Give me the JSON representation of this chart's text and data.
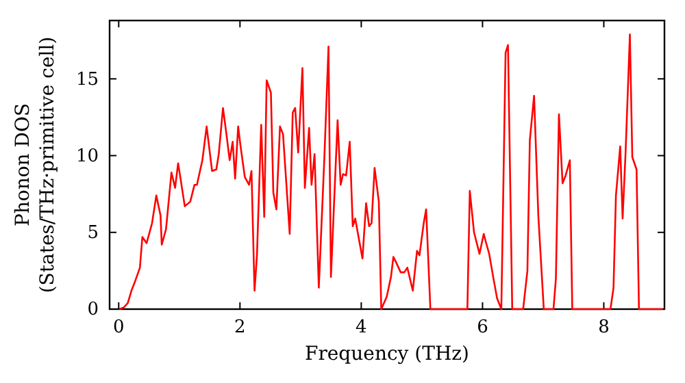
{
  "chart_data": {
    "type": "line",
    "xlabel": "Frequency (THz)",
    "ylabel": "Phonon DOS\n(States/THz·primitive cell)",
    "xlim": [
      -0.15,
      9
    ],
    "ylim": [
      0,
      18.8
    ],
    "xticks": [
      0,
      2,
      4,
      6,
      8
    ],
    "yticks": [
      0,
      5,
      10,
      15
    ],
    "grid": false,
    "marker": "none",
    "line_style": "solid",
    "series": [
      {
        "color": "#ff0000",
        "x": [
          0.01,
          0.08,
          0.15,
          0.21,
          0.26,
          0.35,
          0.39,
          0.46,
          0.55,
          0.62,
          0.69,
          0.71,
          0.78,
          0.87,
          0.93,
          0.98,
          1.02,
          1.09,
          1.18,
          1.25,
          1.29,
          1.38,
          1.45,
          1.54,
          1.61,
          1.65,
          1.72,
          1.77,
          1.83,
          1.88,
          1.92,
          1.97,
          2.01,
          2.08,
          2.15,
          2.19,
          2.24,
          2.28,
          2.35,
          2.4,
          2.44,
          2.51,
          2.55,
          2.6,
          2.66,
          2.71,
          2.82,
          2.87,
          2.91,
          2.96,
          3.03,
          3.07,
          3.14,
          3.18,
          3.23,
          3.3,
          3.39,
          3.46,
          3.5,
          3.61,
          3.66,
          3.7,
          3.75,
          3.81,
          3.86,
          3.9,
          4.02,
          4.08,
          4.13,
          4.17,
          4.22,
          4.29,
          4.33,
          4.42,
          4.49,
          4.53,
          4.58,
          4.65,
          4.71,
          4.76,
          4.85,
          4.92,
          4.96,
          5.03,
          5.07,
          5.14,
          5.75,
          5.79,
          5.86,
          5.95,
          6.02,
          6.06,
          6.11,
          6.18,
          6.24,
          6.31,
          6.38,
          6.42,
          6.49,
          6.67,
          6.74,
          6.78,
          6.85,
          6.92,
          7.01,
          7.17,
          7.21,
          7.26,
          7.32,
          7.37,
          7.44,
          7.48,
          8.11,
          8.16,
          8.2,
          8.27,
          8.31,
          8.36,
          8.43,
          8.47,
          8.54,
          8.58,
          8.97
        ],
        "values": [
          0,
          0.1,
          0.4,
          1.2,
          1.7,
          2.7,
          4.7,
          4.3,
          5.6,
          7.4,
          6.1,
          4.2,
          5.2,
          8.9,
          7.9,
          9.5,
          8.5,
          6.7,
          7.0,
          8.1,
          8.1,
          9.7,
          11.9,
          9.0,
          9.1,
          10.1,
          13.1,
          11.6,
          9.7,
          10.9,
          8.5,
          11.9,
          10.6,
          8.6,
          8.1,
          9.0,
          1.2,
          3.5,
          12.0,
          6.0,
          14.9,
          14.1,
          7.6,
          6.5,
          11.9,
          11.4,
          4.9,
          12.8,
          13.1,
          10.2,
          15.7,
          7.9,
          11.8,
          8.1,
          10.1,
          1.4,
          9.7,
          17.1,
          2.1,
          12.3,
          8.1,
          8.8,
          8.7,
          10.9,
          5.4,
          5.9,
          3.3,
          6.9,
          5.4,
          5.6,
          9.2,
          7.0,
          0,
          0.8,
          2.1,
          3.4,
          3.0,
          2.4,
          2.4,
          2.7,
          1.2,
          3.8,
          3.5,
          5.6,
          6.5,
          0,
          0,
          7.7,
          5.0,
          3.6,
          4.9,
          4.3,
          3.6,
          2.0,
          0.7,
          0,
          16.7,
          17.2,
          0,
          0,
          2.5,
          11.0,
          13.9,
          6.1,
          0,
          0,
          2.0,
          12.7,
          8.2,
          8.7,
          9.7,
          0,
          0,
          1.4,
          7.4,
          10.6,
          5.9,
          10.3,
          17.9,
          9.9,
          9.1,
          0,
          0
        ]
      }
    ]
  }
}
